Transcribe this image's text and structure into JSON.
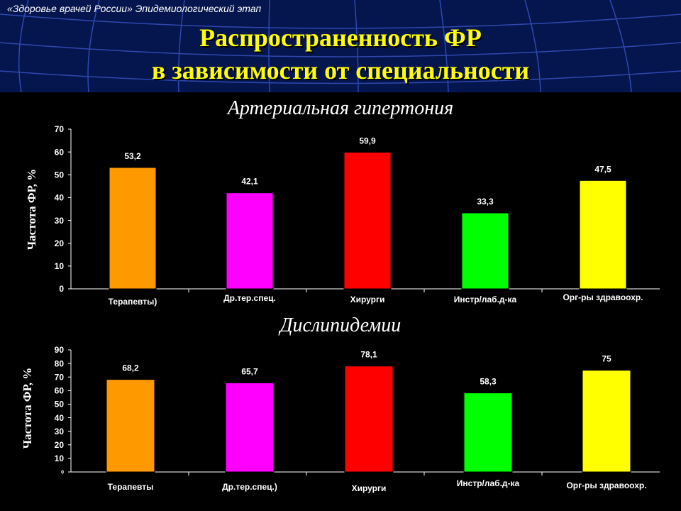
{
  "header": {
    "source": "«Здоровье врачей России» Эпидемиологический этап",
    "title_line1": "Распространенность ФР",
    "title_line2": "в зависимости от специальности"
  },
  "colors": {
    "background": "#05154d",
    "panel": "#000000",
    "title": "#ffff00",
    "grid_lines": "#3a55c8"
  },
  "chart_data": [
    {
      "type": "bar",
      "title": "Артериальная гипертония",
      "ylabel": "Частота ФР, %",
      "xlabel": "",
      "ylim": [
        0,
        70
      ],
      "yticks": [
        "0",
        "10",
        "20",
        "30",
        "40",
        "50",
        "60",
        "70"
      ],
      "categories": [
        "Терапевты)",
        "Др.тер.спец.",
        "Хирурги",
        "Инстр/лаб.д-ка",
        "Орг-ры здравоохр."
      ],
      "values": [
        53.2,
        42.1,
        59.9,
        33.3,
        47.5
      ],
      "value_labels": [
        "53,2",
        "42,1",
        "59,9",
        "33,3",
        "47,5"
      ],
      "colors": [
        "#ff9900",
        "#ff00ff",
        "#ff0000",
        "#00ff00",
        "#ffff00"
      ],
      "grid": false,
      "legend": false
    },
    {
      "type": "bar",
      "title": "Дислипидемии",
      "ylabel": "Частота ФР, %",
      "xlabel": "",
      "ylim": [
        0,
        90
      ],
      "yticks": [
        "0",
        "10",
        "20",
        "30",
        "40",
        "50",
        "60",
        "70",
        "80",
        "90"
      ],
      "categories": [
        "Терапевты",
        "Др.тер.спец.)",
        "Хирурги",
        "Инстр/лаб.д-ка",
        "Орг-ры здравоохр."
      ],
      "values": [
        68.2,
        65.7,
        78.1,
        58.3,
        75
      ],
      "value_labels": [
        "68,2",
        "65,7",
        "78,1",
        "58,3",
        "75"
      ],
      "colors": [
        "#ff9900",
        "#ff00ff",
        "#ff0000",
        "#00ff00",
        "#ffff00"
      ],
      "grid": false,
      "legend": false
    }
  ]
}
